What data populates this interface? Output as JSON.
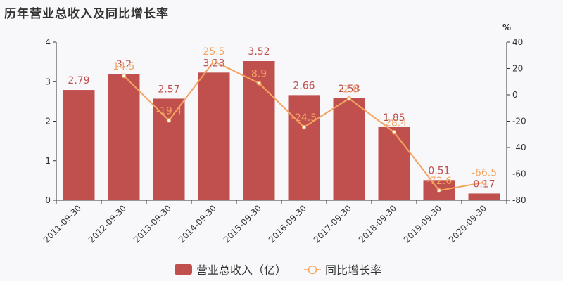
{
  "header": {
    "title": "历年营业总收入及同比增长率"
  },
  "chart_data": {
    "type": "bar",
    "categories": [
      "2011-09-30",
      "2012-09-30",
      "2013-09-30",
      "2014-09-30",
      "2015-09-30",
      "2016-09-30",
      "2017-09-30",
      "2018-09-30",
      "2019-09-30",
      "2020-09-30"
    ],
    "series": [
      {
        "name": "营业总收入（亿）",
        "type": "bar",
        "axis": "left",
        "values": [
          2.79,
          3.2,
          2.57,
          3.23,
          3.52,
          2.66,
          2.58,
          1.85,
          0.51,
          0.17
        ],
        "labels": [
          "2.79",
          "3.2",
          "2.57",
          "3.23",
          "3.52",
          "2.66",
          "2.58",
          "1.85",
          "0.51",
          "0.17"
        ]
      },
      {
        "name": "同比增长率",
        "type": "line",
        "axis": "right",
        "values": [
          null,
          14.5,
          -19.4,
          25.5,
          8.9,
          -24.5,
          -2.8,
          -28.4,
          -72.6,
          -66.5
        ],
        "labels": [
          "",
          "14.5",
          "-19.4",
          "25.5",
          "8.9",
          "-24.5",
          "-2.8",
          "-28.4",
          "-72.6",
          "-66.5"
        ]
      }
    ],
    "y_left": {
      "ylim": [
        0,
        4
      ],
      "ticks": [
        "0",
        "1",
        "2",
        "3",
        "4"
      ]
    },
    "y_right": {
      "ylim": [
        -80,
        40
      ],
      "unit": "%",
      "ticks": [
        "-80",
        "-60",
        "-40",
        "-20",
        "0",
        "20",
        "40"
      ]
    },
    "legend": {
      "position": "bottom"
    },
    "colors": {
      "bar": "#c0504d",
      "line": "#f4a460",
      "bar_label": "#c0504d"
    }
  }
}
